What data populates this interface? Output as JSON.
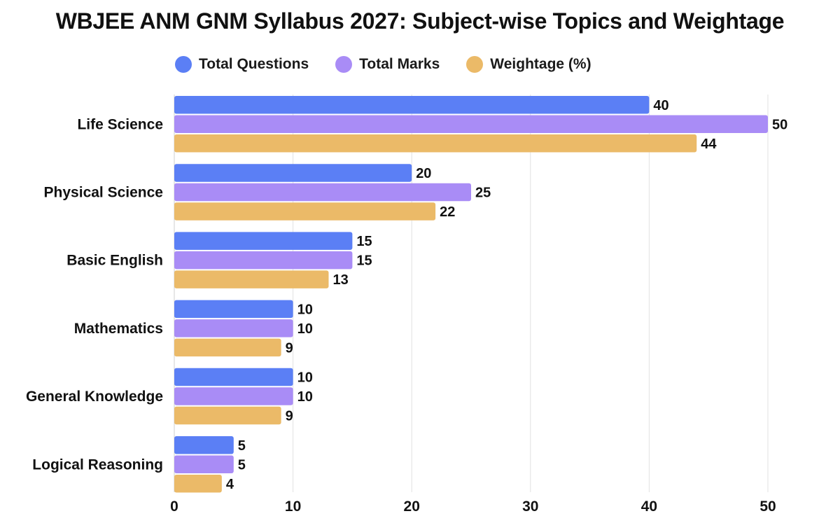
{
  "chart_data": {
    "type": "bar",
    "orientation": "horizontal",
    "title": "WBJEE ANM GNM Syllabus 2027: Subject-wise Topics and Weightage",
    "categories": [
      "Life Science",
      "Physical Science",
      "Basic English",
      "Mathematics",
      "General Knowledge",
      "Logical Reasoning"
    ],
    "series": [
      {
        "name": "Total Questions",
        "color": "#5b7ff5",
        "values": [
          40,
          20,
          15,
          10,
          10,
          5
        ]
      },
      {
        "name": "Total Marks",
        "color": "#a98cf6",
        "values": [
          50,
          25,
          15,
          10,
          10,
          5
        ]
      },
      {
        "name": "Weightage (%)",
        "color": "#ebba68",
        "values": [
          44,
          22,
          13,
          9,
          9,
          4
        ]
      }
    ],
    "xlim": [
      0,
      50
    ],
    "xticks": [
      0,
      10,
      20,
      30,
      40,
      50
    ],
    "grid": true,
    "legend_position": "top"
  }
}
